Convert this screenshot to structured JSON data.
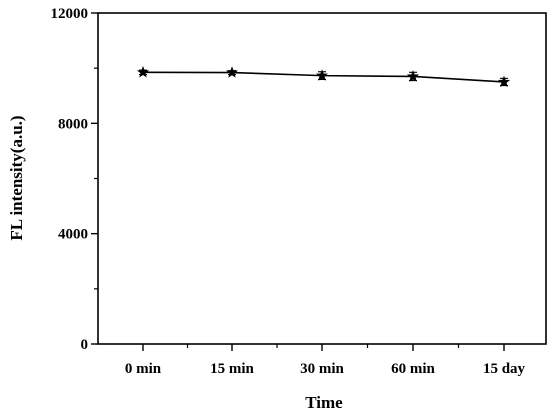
{
  "chart_data": {
    "type": "line",
    "title": "",
    "xlabel": "Time",
    "ylabel": "FL intensity(a.u.)",
    "categories": [
      "0 min",
      "15 min",
      "30 min",
      "60 min",
      "15 day"
    ],
    "series": [
      {
        "values": [
          9850,
          9840,
          9730,
          9700,
          9500
        ],
        "error": [
          80,
          70,
          140,
          150,
          130
        ],
        "color": "#000000",
        "marker": "star"
      }
    ],
    "ylim": [
      0,
      12000
    ],
    "yticks": [
      0,
      4000,
      8000,
      12000
    ],
    "grid": false,
    "legend": "none"
  }
}
